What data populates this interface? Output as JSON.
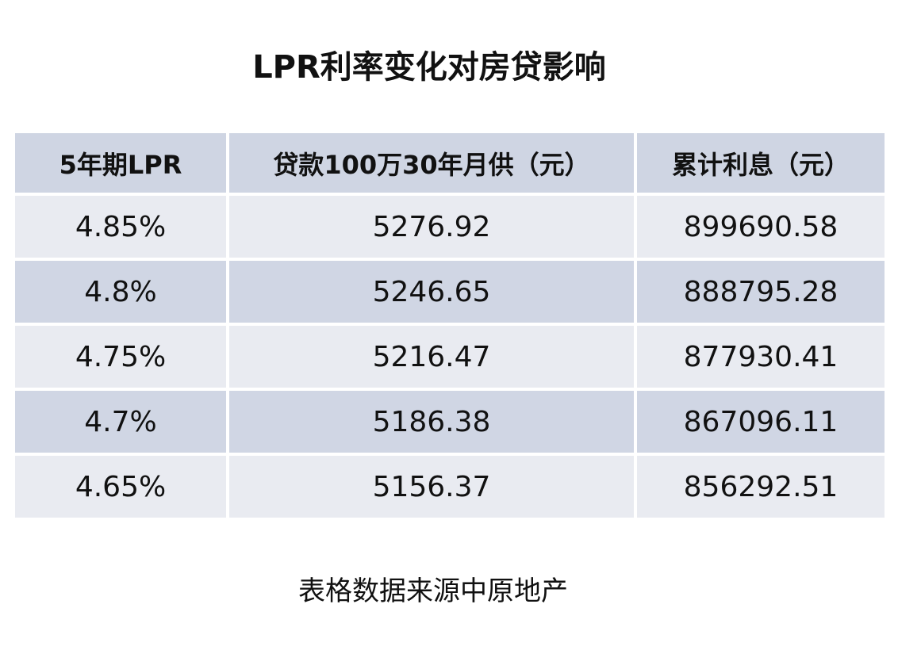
{
  "title": "LPR利率变化对房贷影响",
  "table": {
    "headers": [
      "5年期LPR",
      "贷款100万30年月供（元）",
      "累计利息（元）"
    ],
    "rows": [
      [
        "4.85%",
        "5276.92",
        "899690.58"
      ],
      [
        "4.8%",
        "5246.65",
        "888795.28"
      ],
      [
        "4.75%",
        "5216.47",
        "877930.41"
      ],
      [
        "4.7%",
        "5186.38",
        "867096.11"
      ],
      [
        "4.65%",
        "5156.37",
        "856292.51"
      ]
    ]
  },
  "source": "表格数据来源中原地产",
  "colors": {
    "header_bg": "#cfd5e3",
    "row_light": "#e9ebf1",
    "row_dark": "#d0d6e4"
  }
}
